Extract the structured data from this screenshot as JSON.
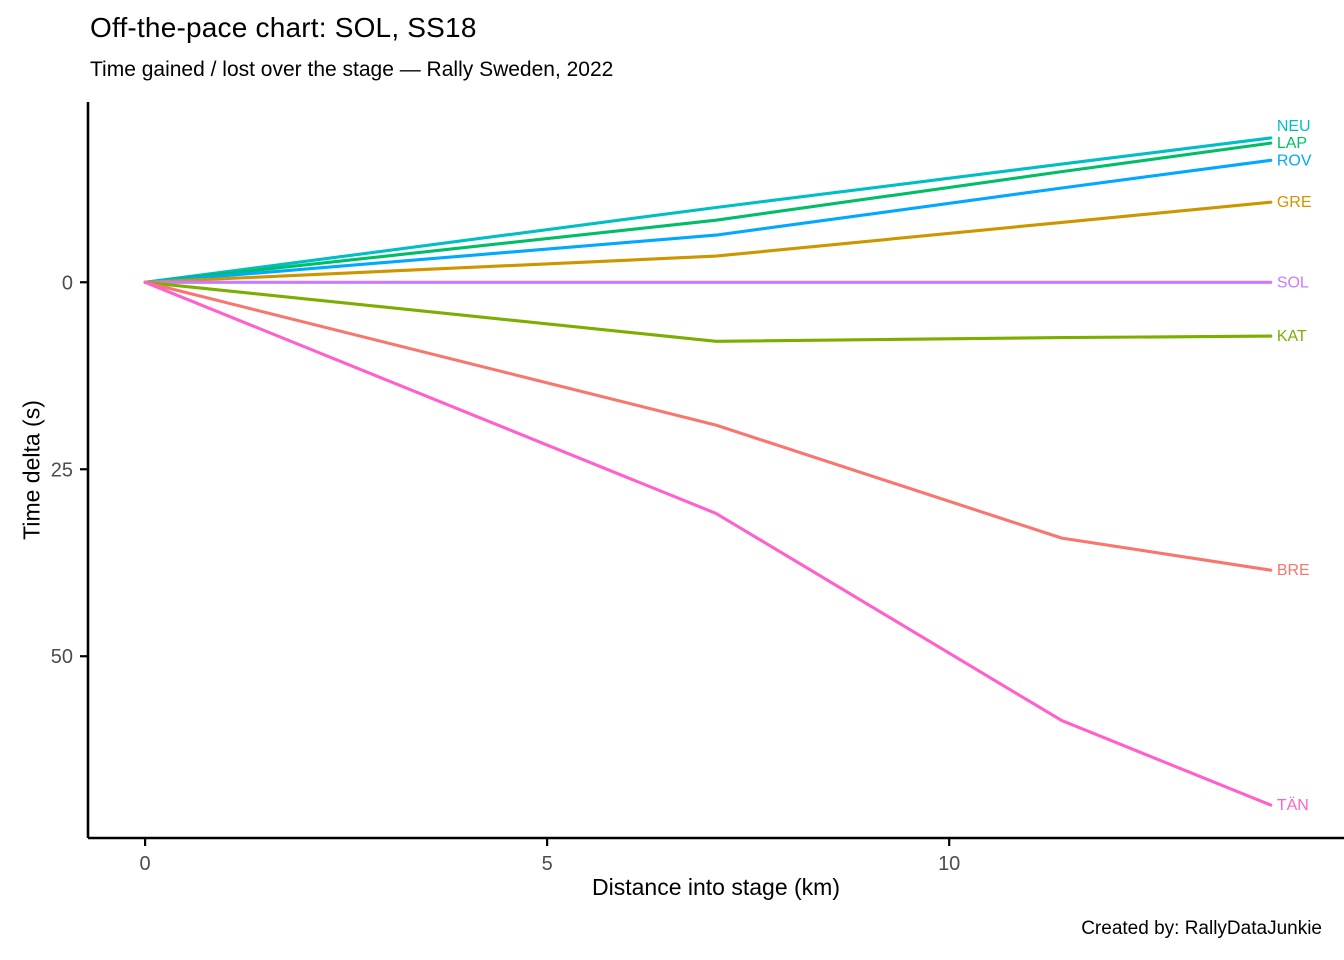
{
  "chart_data": {
    "type": "line",
    "title": "Off-the-pace chart: SOL, SS18",
    "subtitle": "Time gained / lost over the stage — Rally Sweden, 2022",
    "xlabel": "Distance into stage (km)",
    "ylabel": "Time delta (s)",
    "footer": "Created by: RallyDataJunkie",
    "legend": "line-end-labels",
    "grid": false,
    "y_inverted": true,
    "x": [
      0,
      7.1,
      11.4,
      14.0
    ],
    "x_ticks": [
      0,
      5,
      10
    ],
    "y_ticks": [
      0,
      25,
      50
    ],
    "xlim": [
      -0.71,
      14.91
    ],
    "ylim": [
      -24.1,
      74.3
    ],
    "axis_color": "#000000",
    "tick_label_color": "#4d4d4d",
    "series": [
      {
        "name": "NEU",
        "color": "#00BFC4",
        "values": [
          0,
          -10.0,
          -15.8,
          -19.3
        ]
      },
      {
        "name": "LAP",
        "color": "#00BE67",
        "values": [
          0,
          -8.3,
          -14.8,
          -18.6
        ]
      },
      {
        "name": "ROV",
        "color": "#00A9FF",
        "values": [
          0,
          -6.3,
          -12.6,
          -16.3
        ]
      },
      {
        "name": "GRE",
        "color": "#CD9600",
        "values": [
          0,
          -3.5,
          -8.0,
          -10.7
        ]
      },
      {
        "name": "SOL",
        "color": "#C77CFF",
        "values": [
          0,
          0.0,
          0.0,
          0.0
        ]
      },
      {
        "name": "KAT",
        "color": "#7CAE00",
        "values": [
          0,
          7.9,
          7.4,
          7.2
        ]
      },
      {
        "name": "BRE",
        "color": "#F8766D",
        "values": [
          0,
          19.1,
          34.2,
          38.5
        ]
      },
      {
        "name": "TÄN",
        "color": "#FF61CC",
        "values": [
          0,
          30.9,
          58.6,
          69.9
        ]
      }
    ]
  }
}
